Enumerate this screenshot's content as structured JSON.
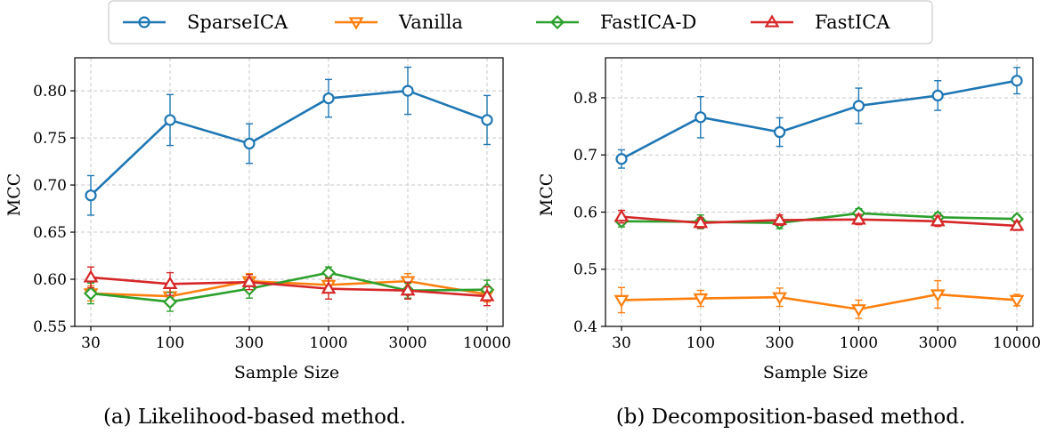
{
  "legend": {
    "entries": [
      {
        "label": "SparseICA",
        "color": "#1f77b4",
        "marker": "circle"
      },
      {
        "label": "Vanilla",
        "color": "#ff7f0e",
        "marker": "triangle-down"
      },
      {
        "label": "FastICA-D",
        "color": "#2ca02c",
        "marker": "diamond"
      },
      {
        "label": "FastICA",
        "color": "#d62728",
        "marker": "triangle-up"
      }
    ]
  },
  "chart_data": [
    {
      "type": "line",
      "caption": "(a) Likelihood-based method.",
      "xlabel": "Sample Size",
      "ylabel": "MCC",
      "categories": [
        "30",
        "100",
        "300",
        "1000",
        "3000",
        "10000"
      ],
      "ylim": [
        0.55,
        0.835
      ],
      "yticks": [
        0.55,
        0.6,
        0.65,
        0.7,
        0.75,
        0.8
      ],
      "ytick_labels": [
        "0.55",
        "0.60",
        "0.65",
        "0.70",
        "0.75",
        "0.80"
      ],
      "grid": true,
      "series": [
        {
          "name": "SparseICA",
          "values": [
            0.689,
            0.769,
            0.744,
            0.792,
            0.8,
            0.769
          ],
          "errors": [
            0.021,
            0.027,
            0.021,
            0.02,
            0.025,
            0.026
          ]
        },
        {
          "name": "Vanilla",
          "values": [
            0.585,
            0.582,
            0.598,
            0.594,
            0.598,
            0.584
          ],
          "errors": [
            0.008,
            0.01,
            0.008,
            0.008,
            0.008,
            0.008
          ]
        },
        {
          "name": "FastICA-D",
          "values": [
            0.585,
            0.576,
            0.59,
            0.607,
            0.588,
            0.589
          ],
          "errors": [
            0.011,
            0.01,
            0.01,
            0.006,
            0.008,
            0.01
          ]
        },
        {
          "name": "FastICA",
          "values": [
            0.602,
            0.595,
            0.597,
            0.59,
            0.588,
            0.582
          ],
          "errors": [
            0.011,
            0.012,
            0.008,
            0.011,
            0.009,
            0.01
          ]
        }
      ]
    },
    {
      "type": "line",
      "caption": "(b) Decomposition-based method.",
      "xlabel": "Sample Size",
      "ylabel": "MCC",
      "categories": [
        "30",
        "100",
        "300",
        "1000",
        "3000",
        "10000"
      ],
      "ylim": [
        0.4,
        0.87
      ],
      "yticks": [
        0.4,
        0.5,
        0.6,
        0.7,
        0.8
      ],
      "ytick_labels": [
        "0.4",
        "0.5",
        "0.6",
        "0.7",
        "0.8"
      ],
      "grid": true,
      "series": [
        {
          "name": "SparseICA",
          "values": [
            0.693,
            0.766,
            0.74,
            0.786,
            0.804,
            0.83
          ],
          "errors": [
            0.016,
            0.036,
            0.025,
            0.031,
            0.026,
            0.023
          ]
        },
        {
          "name": "Vanilla",
          "values": [
            0.446,
            0.449,
            0.451,
            0.43,
            0.456,
            0.446
          ],
          "errors": [
            0.022,
            0.014,
            0.016,
            0.016,
            0.024,
            0.01
          ]
        },
        {
          "name": "FastICA-D",
          "values": [
            0.584,
            0.583,
            0.581,
            0.598,
            0.591,
            0.588
          ],
          "errors": [
            0.01,
            0.012,
            0.01,
            0.008,
            0.008,
            0.007
          ]
        },
        {
          "name": "FastICA",
          "values": [
            0.592,
            0.581,
            0.586,
            0.587,
            0.584,
            0.576
          ],
          "errors": [
            0.011,
            0.009,
            0.009,
            0.009,
            0.009,
            0.008
          ]
        }
      ]
    }
  ]
}
